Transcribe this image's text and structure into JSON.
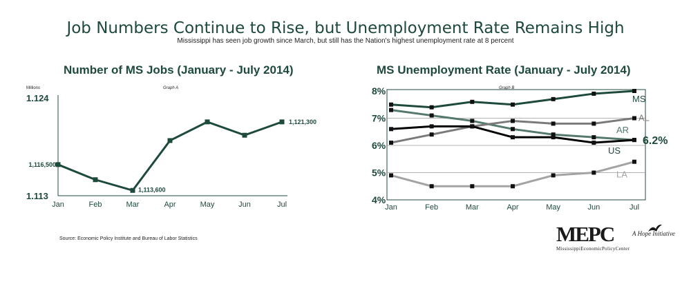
{
  "header": {
    "title": "Job Numbers Continue to Rise, but Unemployment Rate Remains High",
    "subtitle": "Mississippi has seen job growth since March, but still has the Nation's highest unemployment rate at 8 percent"
  },
  "source": "Source: Economic Policy Institute and Bureau of Labor Statistics",
  "logo": {
    "main": "MEPC",
    "tagline": "A Hope Initiative",
    "subtitle": "MississippiEconomicPolicyCenter"
  },
  "chart_data": [
    {
      "type": "line",
      "title": "Number of MS Jobs (January - July 2014)",
      "graph_label": "Graph A",
      "unit_label": "Millions",
      "categories": [
        "Jan",
        "Feb",
        "Mar",
        "Apr",
        "May",
        "Jun",
        "Jul"
      ],
      "ylim": [
        1.113,
        1.124
      ],
      "y_ticks": [
        "1.124",
        "1.113"
      ],
      "series": [
        {
          "values": [
            1.1165,
            1.1148,
            1.1136,
            1.1192,
            1.1213,
            1.1198,
            1.1213
          ],
          "color": "#1d4a3a"
        }
      ],
      "data_labels": [
        {
          "index": 0,
          "text": "1,116,500"
        },
        {
          "index": 2,
          "text": "1,113,600"
        },
        {
          "index": 6,
          "text": "1,121,300"
        }
      ],
      "grid": false
    },
    {
      "type": "line",
      "title": "MS Unemployment Rate (January - July 2014)",
      "graph_label": "Graph B",
      "categories": [
        "Jan",
        "Feb",
        "Mar",
        "Apr",
        "May",
        "Jun",
        "Jul"
      ],
      "ylim": [
        4,
        8
      ],
      "y_ticks": [
        "8%",
        "7%",
        "6%",
        "5%",
        "4%"
      ],
      "series": [
        {
          "name": "MS",
          "values": [
            7.5,
            7.4,
            7.6,
            7.5,
            7.7,
            7.9,
            8.0
          ],
          "color": "#1d4a3a"
        },
        {
          "name": "AL",
          "values": [
            6.1,
            6.4,
            6.7,
            6.9,
            6.8,
            6.8,
            7.0
          ],
          "color": "#7a7a7a"
        },
        {
          "name": "AR",
          "values": [
            7.3,
            7.1,
            6.9,
            6.6,
            6.4,
            6.3,
            6.2
          ],
          "color": "#557a6b"
        },
        {
          "name": "US",
          "values": [
            6.6,
            6.7,
            6.7,
            6.3,
            6.3,
            6.1,
            6.2
          ],
          "color": "#000000"
        },
        {
          "name": "LA",
          "values": [
            4.9,
            4.5,
            4.5,
            4.5,
            4.9,
            5.0,
            5.4
          ],
          "color": "#a3a3a3"
        }
      ],
      "callout": "6.2%",
      "grid": true
    }
  ]
}
